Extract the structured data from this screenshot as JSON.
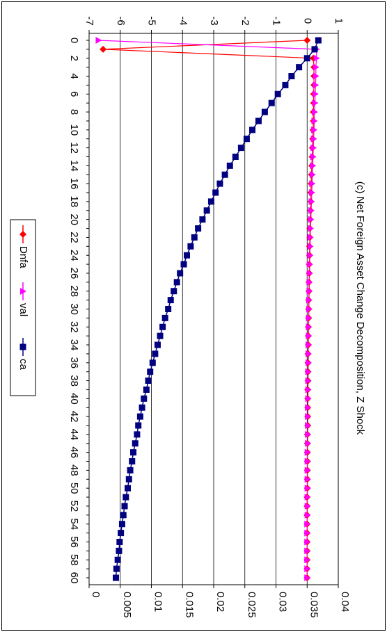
{
  "chart_data": {
    "type": "line",
    "orientation": "rotated 90 degrees clockwise",
    "title": "(c) Net Foreign Asset Change Decomposition, Z Shock",
    "x": [
      0,
      1,
      2,
      3,
      4,
      5,
      6,
      7,
      8,
      9,
      10,
      11,
      12,
      13,
      14,
      15,
      16,
      17,
      18,
      19,
      20,
      21,
      22,
      23,
      24,
      25,
      26,
      27,
      28,
      29,
      30,
      31,
      32,
      33,
      34,
      35,
      36,
      37,
      38,
      39,
      40,
      41,
      42,
      43,
      44,
      45,
      46,
      47,
      48,
      49,
      50,
      51,
      52,
      53,
      54,
      55,
      56,
      57,
      58,
      59,
      60
    ],
    "x_tick_labels": [
      "0",
      "2",
      "4",
      "6",
      "8",
      "10",
      "12",
      "14",
      "16",
      "18",
      "20",
      "22",
      "24",
      "26",
      "28",
      "30",
      "32",
      "34",
      "36",
      "38",
      "40",
      "42",
      "44",
      "46",
      "48",
      "50",
      "52",
      "54",
      "56",
      "58",
      "60"
    ],
    "primary_axis": {
      "ticks": [
        "-7",
        "-6",
        "-5",
        "-4",
        "-3",
        "-2",
        "-1",
        "0",
        "1"
      ],
      "range": [
        -7,
        1
      ],
      "grid": true
    },
    "secondary_axis": {
      "ticks": [
        "0",
        "0.005",
        "0.01",
        "0.015",
        "0.02",
        "0.025",
        "0.03",
        "0.035",
        "0.04"
      ],
      "range": [
        0,
        0.04
      ]
    },
    "series": [
      {
        "name": "Dnfa",
        "axis": "primary",
        "color": "#ff0000",
        "marker": "diamond",
        "values": [
          0.0,
          -6.55,
          0.2,
          0.22,
          0.22,
          0.22,
          0.21,
          0.21,
          0.2,
          0.2,
          0.19,
          0.18,
          0.17,
          0.16,
          0.15,
          0.14,
          0.13,
          0.12,
          0.12,
          0.11,
          0.1,
          0.09,
          0.09,
          0.08,
          0.08,
          0.07,
          0.07,
          0.06,
          0.06,
          0.05,
          0.05,
          0.05,
          0.04,
          0.04,
          0.04,
          0.03,
          0.03,
          0.03,
          0.03,
          0.02,
          0.02,
          0.02,
          0.02,
          0.02,
          0.01,
          0.01,
          0.01,
          0.01,
          0.01,
          0.01,
          0.01,
          0.0,
          0.0,
          0.0,
          0.0,
          0.0,
          0.0,
          0.0,
          0.0,
          0.0,
          0.0
        ]
      },
      {
        "name": "val",
        "axis": "primary",
        "color": "#ff00ff",
        "marker": "triangle",
        "values": [
          -6.7,
          0.3,
          0.3,
          0.28,
          0.28,
          0.27,
          0.26,
          0.25,
          0.24,
          0.23,
          0.22,
          0.21,
          0.2,
          0.19,
          0.18,
          0.17,
          0.16,
          0.15,
          0.14,
          0.13,
          0.12,
          0.11,
          0.1,
          0.1,
          0.09,
          0.08,
          0.08,
          0.07,
          0.07,
          0.06,
          0.06,
          0.05,
          0.05,
          0.05,
          0.04,
          0.04,
          0.04,
          0.03,
          0.03,
          0.03,
          0.03,
          0.02,
          0.02,
          0.02,
          0.02,
          0.02,
          0.01,
          0.01,
          0.01,
          0.01,
          0.01,
          0.01,
          0.01,
          0.01,
          0.0,
          0.0,
          0.0,
          0.0,
          0.0,
          0.0,
          0.0
        ]
      },
      {
        "name": "ca",
        "axis": "secondary",
        "color": "#000080",
        "marker": "square",
        "values": [
          0.0368,
          0.0362,
          0.035,
          0.0337,
          0.0325,
          0.0315,
          0.0303,
          0.0293,
          0.0282,
          0.0272,
          0.0262,
          0.0253,
          0.0244,
          0.0235,
          0.0226,
          0.0218,
          0.021,
          0.0203,
          0.0196,
          0.0189,
          0.0182,
          0.0175,
          0.0169,
          0.0163,
          0.0157,
          0.0152,
          0.0146,
          0.0141,
          0.0136,
          0.0131,
          0.0127,
          0.0122,
          0.0118,
          0.0114,
          0.011,
          0.0106,
          0.0102,
          0.0098,
          0.0095,
          0.0092,
          0.0088,
          0.0085,
          0.0082,
          0.0079,
          0.0077,
          0.0074,
          0.0071,
          0.0069,
          0.0066,
          0.0064,
          0.0062,
          0.0059,
          0.0057,
          0.0055,
          0.0053,
          0.0051,
          0.0049,
          0.0048,
          0.0046,
          0.0044,
          0.0043
        ]
      }
    ],
    "legend": {
      "position": "bottom",
      "entries": [
        "Dnfa",
        "val",
        "ca"
      ]
    }
  }
}
